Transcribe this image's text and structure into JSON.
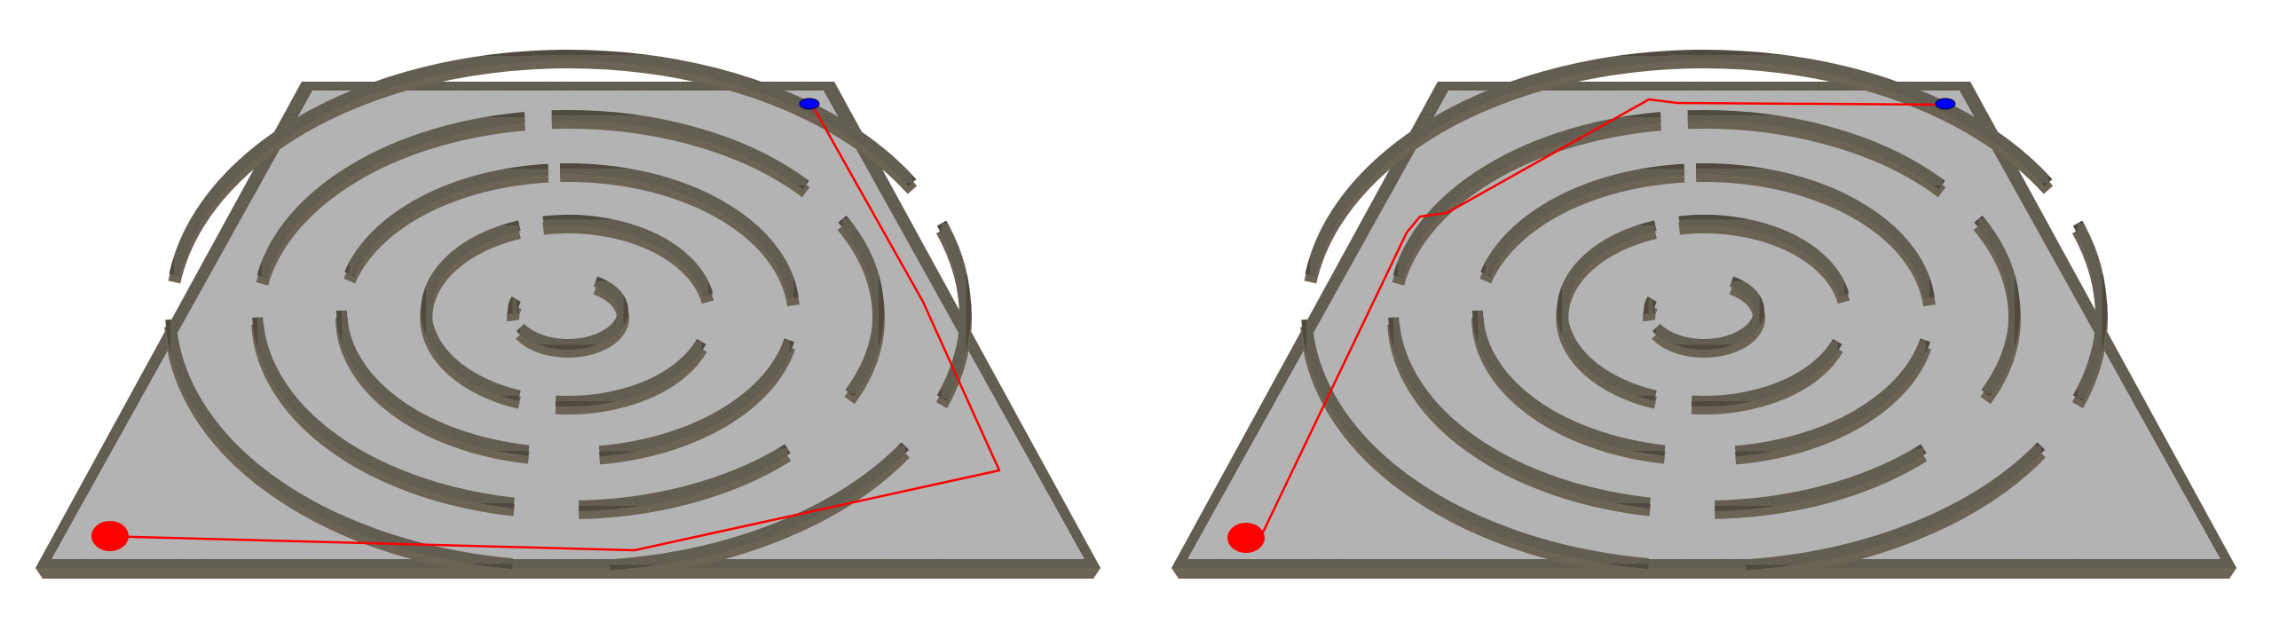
{
  "scene": {
    "background": "#ffffff",
    "floor_color": "#b3b3b3",
    "wall_top_color": "#4f4a3f",
    "wall_side_color": "#6b6354",
    "path_color": "#ff0000",
    "start_marker_color": "#ff0000",
    "goal_marker_color": "#0000ff"
  },
  "panels": [
    {
      "id": "left",
      "path_route": "long-outer-bypass"
    },
    {
      "id": "right",
      "path_route": "through-outer-ring-gap"
    }
  ]
}
